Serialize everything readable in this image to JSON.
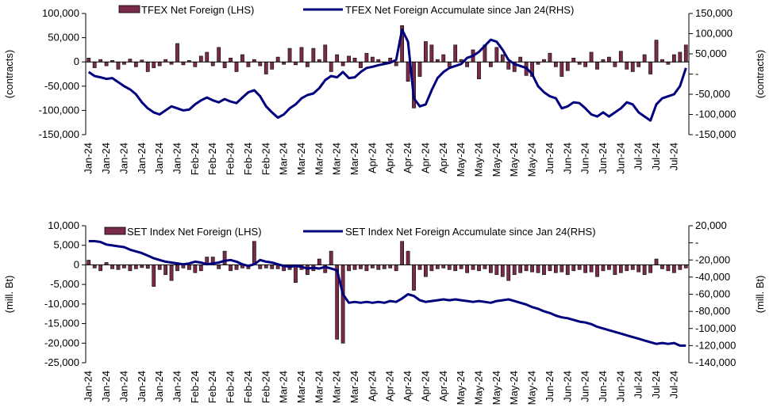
{
  "chart_data": [
    {
      "type": "bar-line",
      "ylabel": "(contracts)",
      "y2label": "(contracts)",
      "categories": [
        "Jan-24",
        null,
        null,
        "Jan-24",
        null,
        null,
        "Jan-24",
        null,
        null,
        "Jan-24",
        null,
        null,
        "Jan-24",
        null,
        null,
        "Jan-24",
        null,
        null,
        "Feb-24",
        null,
        null,
        "Feb-24",
        null,
        null,
        "Feb-24",
        null,
        null,
        "Feb-24",
        null,
        null,
        "Feb-24",
        null,
        null,
        "Mar-24",
        null,
        null,
        "Mar-24",
        null,
        null,
        "Mar-24",
        null,
        null,
        "Mar-24",
        null,
        null,
        "Mar-24",
        null,
        null,
        "Apr-24",
        null,
        null,
        "Apr-24",
        null,
        null,
        "Apr-24",
        null,
        null,
        "Apr-24",
        null,
        null,
        "Apr-24",
        null,
        null,
        "May-24",
        null,
        null,
        "May-24",
        null,
        null,
        "May-24",
        null,
        null,
        "May-24",
        null,
        null,
        "May-24",
        null,
        null,
        "Jun-24",
        null,
        null,
        "Jun-24",
        null,
        null,
        "Jun-24",
        null,
        null,
        "Jun-24",
        null,
        null,
        "Jun-24",
        null,
        null,
        "Jul-24",
        null,
        null,
        "Jul-24",
        null,
        null,
        "Jul-24",
        null,
        null
      ],
      "series": [
        {
          "name": "TFEX Net Foreign (LHS)",
          "type": "bar",
          "color": "#7b2b4a",
          "values": [
            8000,
            -12000,
            5000,
            -8000,
            3000,
            -15000,
            -5000,
            6000,
            -10000,
            4000,
            -20000,
            -12000,
            -8000,
            5000,
            -5000,
            38000,
            -6000,
            3000,
            -10000,
            12000,
            20000,
            -8000,
            30000,
            -12000,
            8000,
            -20000,
            15000,
            -10000,
            5000,
            -8000,
            -25000,
            -15000,
            10000,
            -5000,
            28000,
            -6000,
            30000,
            -10000,
            28000,
            5000,
            35000,
            -20000,
            15000,
            -8000,
            12000,
            8000,
            -12000,
            18000,
            10000,
            5000,
            -5000,
            8000,
            -8000,
            75000,
            -40000,
            -95000,
            -30000,
            42000,
            35000,
            5000,
            15000,
            -10000,
            35000,
            5000,
            -10000,
            25000,
            -35000,
            35000,
            -10000,
            30000,
            15000,
            -15000,
            -20000,
            10000,
            -28000,
            -30000,
            -5000,
            5000,
            18000,
            -10000,
            -30000,
            -18000,
            8000,
            -5000,
            -10000,
            20000,
            -15000,
            5000,
            10000,
            -10000,
            22000,
            -15000,
            -20000,
            -10000,
            15000,
            -25000,
            45000,
            5000,
            -5000,
            15000,
            20000,
            35000
          ]
        },
        {
          "name": "TFEX Net Foreign Accumulate since Jan 24(RHS)",
          "type": "line",
          "axis": "y2",
          "color": "#00007f",
          "values": [
            5000,
            -5000,
            -8000,
            -12000,
            -10000,
            -20000,
            -30000,
            -38000,
            -50000,
            -70000,
            -85000,
            -95000,
            -100000,
            -90000,
            -80000,
            -85000,
            -90000,
            -88000,
            -75000,
            -65000,
            -58000,
            -65000,
            -70000,
            -62000,
            -68000,
            -72000,
            -58000,
            -45000,
            -40000,
            -55000,
            -80000,
            -95000,
            -108000,
            -100000,
            -85000,
            -75000,
            -60000,
            -52000,
            -48000,
            -35000,
            -15000,
            -5000,
            -8000,
            5000,
            -10000,
            -8000,
            5000,
            15000,
            18000,
            22000,
            25000,
            28000,
            35000,
            110000,
            80000,
            -60000,
            -80000,
            -75000,
            -40000,
            -10000,
            5000,
            15000,
            20000,
            25000,
            40000,
            45000,
            55000,
            70000,
            85000,
            80000,
            60000,
            35000,
            25000,
            20000,
            15000,
            0,
            -30000,
            -45000,
            -55000,
            -60000,
            -85000,
            -80000,
            -70000,
            -72000,
            -85000,
            -100000,
            -105000,
            -95000,
            -105000,
            -95000,
            -85000,
            -70000,
            -75000,
            -95000,
            -105000,
            -115000,
            -75000,
            -60000,
            -55000,
            -50000,
            -30000,
            15000
          ]
        }
      ],
      "ylim": [
        -150000,
        100000
      ],
      "yticks": [
        {
          "value": -150000,
          "label": "-150,000"
        },
        {
          "value": -100000,
          "label": "-100,000"
        },
        {
          "value": -50000,
          "label": "-50,000"
        },
        0,
        {
          "value": 50000,
          "label": "50,000"
        },
        {
          "value": 100000,
          "label": "100,000"
        }
      ],
      "y2lim": [
        -150000,
        150000
      ],
      "y2ticks": [
        {
          "value": -150000,
          "label": "-150,000"
        },
        {
          "value": -100000,
          "label": "-100,000"
        },
        {
          "value": -50000,
          "label": "-50,000"
        },
        {
          "value": 0,
          "label": "-"
        },
        {
          "value": 50000,
          "label": "50,000"
        },
        {
          "value": 100000,
          "label": "100,000"
        },
        {
          "value": 150000,
          "label": "150,000"
        }
      ]
    },
    {
      "type": "bar-line",
      "ylabel": "(mill. Bt)",
      "y2label": "(mill. Bt)",
      "categories": [
        "Jan-24",
        null,
        null,
        "Jan-24",
        null,
        null,
        "Jan-24",
        null,
        null,
        "Jan-24",
        null,
        null,
        "Jan-24",
        null,
        null,
        "Jan-24",
        null,
        null,
        "Feb-24",
        null,
        null,
        "Feb-24",
        null,
        null,
        "Feb-24",
        null,
        null,
        "Feb-24",
        null,
        null,
        "Feb-24",
        null,
        null,
        "Mar-24",
        null,
        null,
        "Mar-24",
        null,
        null,
        "Mar-24",
        null,
        null,
        "Mar-24",
        null,
        null,
        "Mar-24",
        null,
        null,
        "Apr-24",
        null,
        null,
        "Apr-24",
        null,
        null,
        "Apr-24",
        null,
        null,
        "Apr-24",
        null,
        null,
        "Apr-24",
        null,
        null,
        "May-24",
        null,
        null,
        "May-24",
        null,
        null,
        "May-24",
        null,
        null,
        "May-24",
        null,
        null,
        "May-24",
        null,
        null,
        "Jun-24",
        null,
        null,
        "Jun-24",
        null,
        null,
        "Jun-24",
        null,
        null,
        "Jun-24",
        null,
        null,
        "Jun-24",
        null,
        null,
        "Jul-24",
        null,
        null,
        "Jul-24",
        null,
        null,
        "Jul-24",
        null,
        null
      ],
      "series": [
        {
          "name": "SET Index Net Foreign (LHS)",
          "type": "bar",
          "color": "#7b2b4a",
          "values": [
            1200,
            -800,
            -1500,
            600,
            -1000,
            -1200,
            -800,
            -1500,
            -1000,
            -700,
            -900,
            -5500,
            -1200,
            -2500,
            -4000,
            -1500,
            -800,
            -1200,
            -2000,
            -1500,
            2000,
            2000,
            -1000,
            3500,
            -1500,
            -1200,
            -800,
            -1000,
            6000,
            -1000,
            -800,
            -1000,
            -1000,
            -1500,
            -1200,
            -4500,
            -1200,
            -2500,
            -1500,
            1500,
            -2000,
            3500,
            -19000,
            -20000,
            -1500,
            -1200,
            -1000,
            -1500,
            -800,
            -1200,
            -1000,
            -800,
            -1500,
            6000,
            3500,
            -6500,
            -1200,
            -3000,
            -1500,
            -1000,
            -800,
            -1200,
            -1500,
            -1000,
            -2000,
            -1200,
            -1500,
            -1000,
            -2000,
            -2500,
            -3000,
            -4000,
            -2500,
            -2000,
            -1500,
            -1800,
            -2000,
            -2500,
            -1500,
            -2000,
            -1800,
            -2500,
            -1500,
            -1200,
            -2000,
            -1800,
            -3000,
            -1500,
            -1200,
            -2500,
            -2000,
            -1500,
            -1200,
            -1800,
            -2500,
            -2000,
            1500,
            -1000,
            -1500,
            -2000,
            -1200,
            -800
          ]
        },
        {
          "name": "SET Index Net Foreign Accumulate since Jan 24(RHS)",
          "type": "line",
          "axis": "y2",
          "color": "#00007f",
          "values": [
            2000,
            2000,
            1000,
            -2000,
            -3000,
            -4000,
            -5000,
            -8000,
            -10000,
            -12000,
            -15000,
            -18000,
            -20000,
            -22000,
            -23000,
            -24000,
            -25000,
            -24000,
            -22000,
            -23000,
            -25000,
            -24000,
            -23000,
            -21000,
            -20000,
            -22000,
            -25000,
            -27000,
            -25000,
            -20000,
            -22000,
            -23000,
            -25000,
            -27000,
            -28000,
            -27000,
            -28000,
            -30000,
            -29000,
            -30000,
            -28000,
            -30000,
            -32000,
            -60000,
            -70000,
            -69000,
            -70000,
            -69000,
            -70000,
            -69000,
            -70000,
            -68000,
            -69000,
            -65000,
            -60000,
            -62000,
            -67000,
            -69000,
            -68000,
            -67000,
            -66000,
            -67000,
            -66000,
            -67000,
            -68000,
            -69000,
            -68000,
            -69000,
            -70000,
            -68000,
            -67000,
            -66000,
            -68000,
            -70000,
            -72000,
            -75000,
            -77000,
            -80000,
            -82000,
            -85000,
            -87000,
            -88000,
            -90000,
            -92000,
            -93000,
            -95000,
            -98000,
            -100000,
            -102000,
            -104000,
            -106000,
            -108000,
            -110000,
            -112000,
            -114000,
            -116000,
            -118000,
            -117000,
            -118000,
            -117000,
            -120000,
            -120000
          ]
        }
      ],
      "ylim": [
        -25000,
        10000
      ],
      "yticks": [
        {
          "value": -25000,
          "label": "-25,000"
        },
        {
          "value": -20000,
          "label": "-20,000"
        },
        {
          "value": -15000,
          "label": "-15,000"
        },
        {
          "value": -10000,
          "label": "-10,000"
        },
        {
          "value": -5000,
          "label": "-5,000"
        },
        0,
        {
          "value": 5000,
          "label": "5,000"
        },
        {
          "value": 10000,
          "label": "10,000"
        }
      ],
      "y2lim": [
        -140000,
        20000
      ],
      "y2ticks": [
        {
          "value": -140000,
          "label": "-140,000"
        },
        {
          "value": -120000,
          "label": "-120,000"
        },
        {
          "value": -100000,
          "label": "-100,000"
        },
        {
          "value": -80000,
          "label": "-80,000"
        },
        {
          "value": -60000,
          "label": "-60,000"
        },
        {
          "value": -40000,
          "label": "-40,000"
        },
        {
          "value": -20000,
          "label": "-20,000"
        },
        {
          "value": 0,
          "label": "-"
        },
        {
          "value": 20000,
          "label": "20,000"
        }
      ]
    }
  ]
}
